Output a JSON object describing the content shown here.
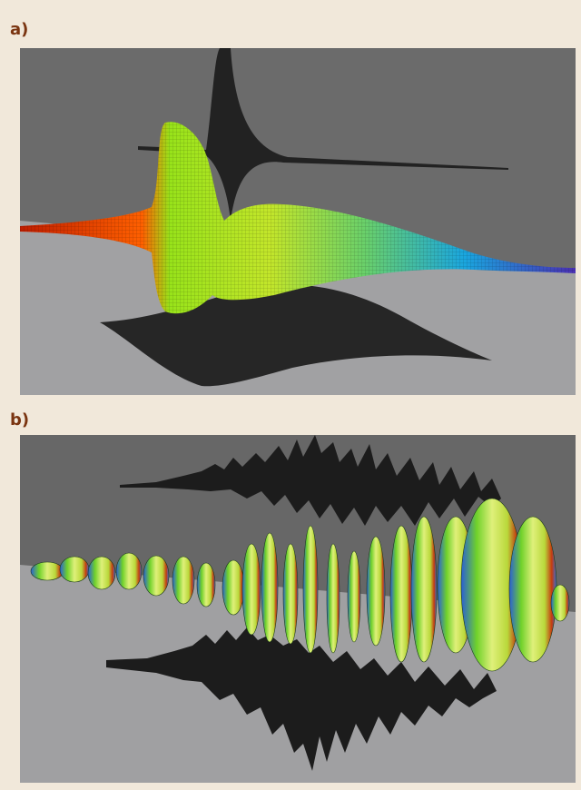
{
  "figure": {
    "background_color": "#f1e8da",
    "label_color": "#7a3410",
    "panels": [
      {
        "label": "a)",
        "description_icon": "single-wave-packet-3d-render",
        "wall_color": "#6b6b6b",
        "floor_color": "#a1a1a3",
        "gradient": [
          "#cc2200",
          "#ff6a00",
          "#8ee21a",
          "#7ee04a",
          "#1fa9d8",
          "#4c38b8"
        ]
      },
      {
        "label": "b)",
        "description_icon": "multi-wave-packet-3d-render",
        "wall_color": "#676767",
        "floor_color": "#a0a0a2",
        "gradient": [
          "#2a5fd6",
          "#6fd12a",
          "#e8f070",
          "#c7d93a",
          "#c43a10"
        ]
      }
    ]
  }
}
